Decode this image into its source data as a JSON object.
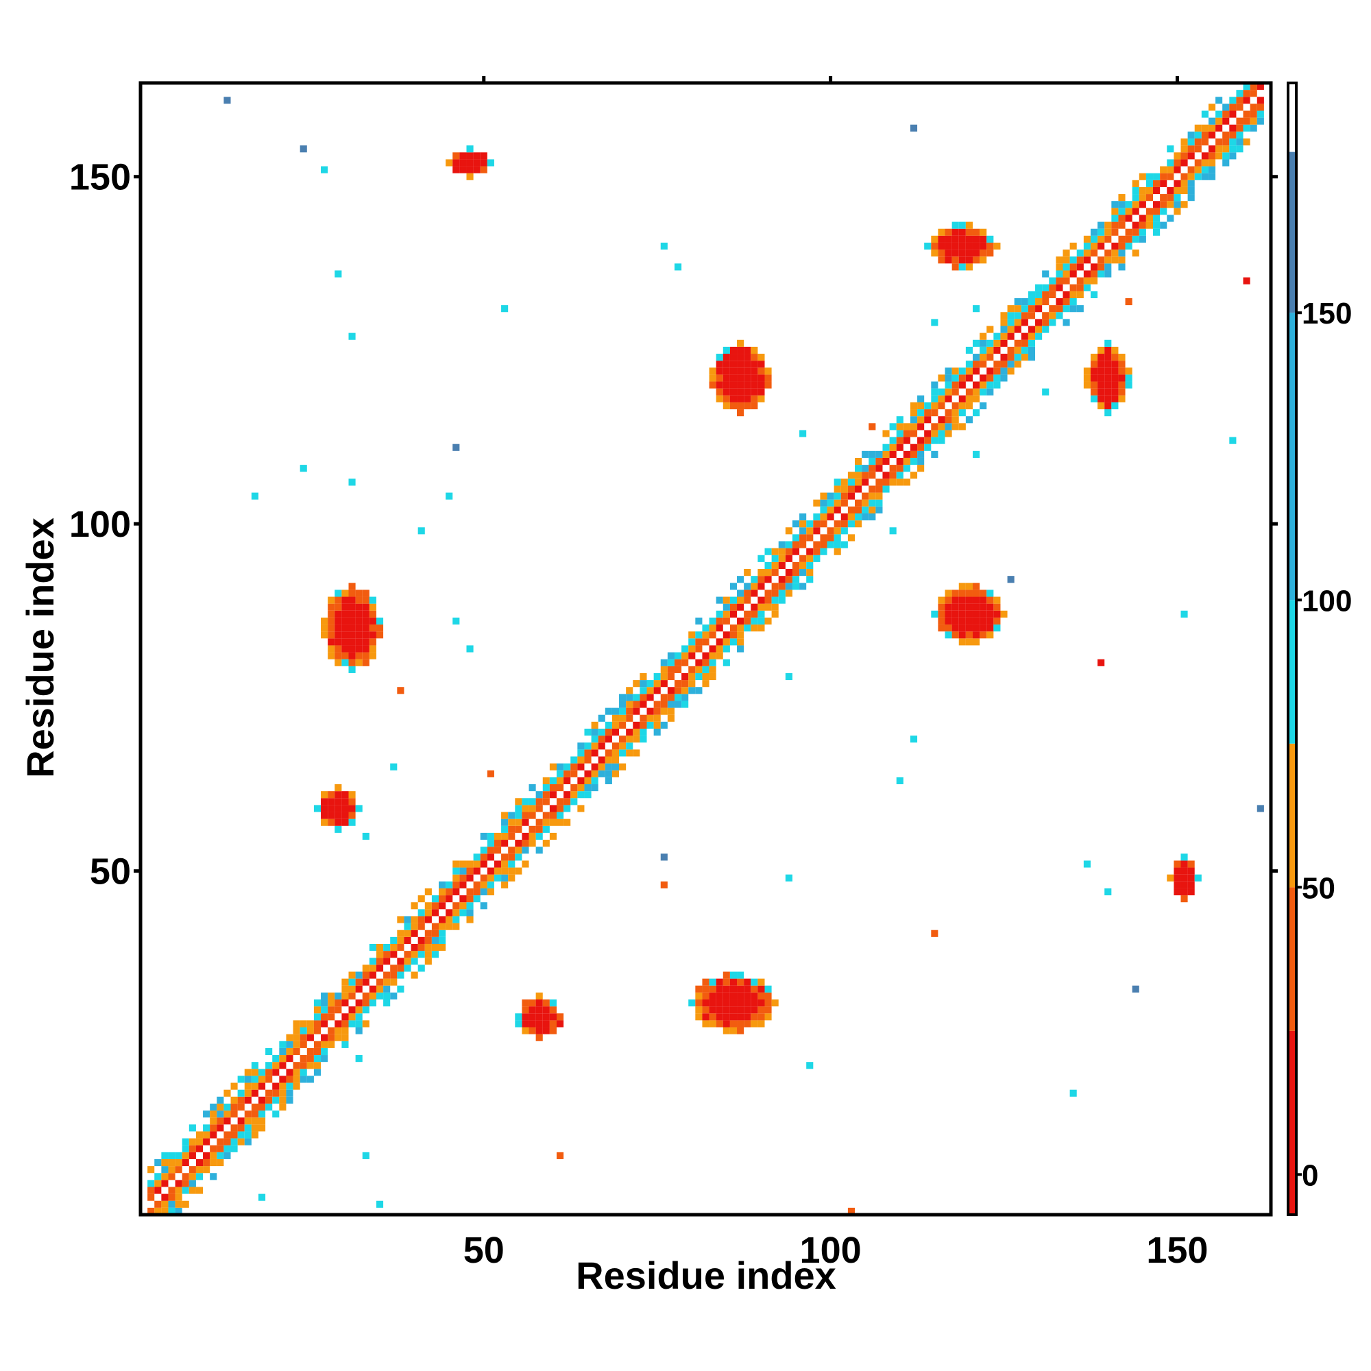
{
  "chart_data": {
    "type": "heatmap",
    "title": "",
    "xlabel": "Residue index",
    "ylabel": "Residue index",
    "xlim": [
      1,
      163
    ],
    "ylim": [
      1,
      163
    ],
    "x_ticks": [
      50,
      100,
      150
    ],
    "y_ticks": [
      50,
      100,
      150
    ],
    "colorbar": {
      "range": [
        -7,
        190
      ],
      "ticks": [
        0,
        50,
        100,
        150
      ],
      "bands": [
        {
          "from": -7,
          "to": 25,
          "color": "#e8140f"
        },
        {
          "from": 25,
          "to": 50,
          "color": "#f25c0f"
        },
        {
          "from": 50,
          "to": 75,
          "color": "#f7990f"
        },
        {
          "from": 75,
          "to": 100,
          "color": "#1ed7e6"
        },
        {
          "from": 100,
          "to": 150,
          "color": "#2eb0db"
        },
        {
          "from": 150,
          "to": 178,
          "color": "#4a7fb0"
        },
        {
          "from": 178,
          "to": 190,
          "color": "#ffffff"
        }
      ]
    },
    "regions": [
      {
        "name": "diagonal-band",
        "from": [
          2,
          2
        ],
        "to": [
          162,
          162
        ],
        "width": 5
      },
      {
        "name": "contact-patch",
        "cx": 31,
        "cy": 85,
        "rx": 4,
        "ry": 6
      },
      {
        "name": "contact-patch",
        "cx": 29,
        "cy": 59,
        "rx": 3,
        "ry": 3
      },
      {
        "name": "contact-patch",
        "cx": 58,
        "cy": 29,
        "rx": 3,
        "ry": 3
      },
      {
        "name": "contact-patch",
        "cx": 86,
        "cy": 31,
        "rx": 6,
        "ry": 4
      },
      {
        "name": "contact-patch",
        "cx": 87,
        "cy": 121,
        "rx": 4,
        "ry": 5
      },
      {
        "name": "contact-patch",
        "cx": 120,
        "cy": 87,
        "rx": 5,
        "ry": 4
      },
      {
        "name": "contact-patch",
        "cx": 119,
        "cy": 140,
        "rx": 5,
        "ry": 3
      },
      {
        "name": "contact-patch",
        "cx": 140,
        "cy": 121,
        "rx": 3,
        "ry": 5
      },
      {
        "name": "contact-patch",
        "cx": 48,
        "cy": 152,
        "rx": 3,
        "ry": 2
      },
      {
        "name": "contact-patch",
        "cx": 151,
        "cy": 49,
        "rx": 2,
        "ry": 3
      }
    ]
  },
  "axis_labels": {
    "x_title": "Residue index",
    "y_title": "Residue index"
  }
}
